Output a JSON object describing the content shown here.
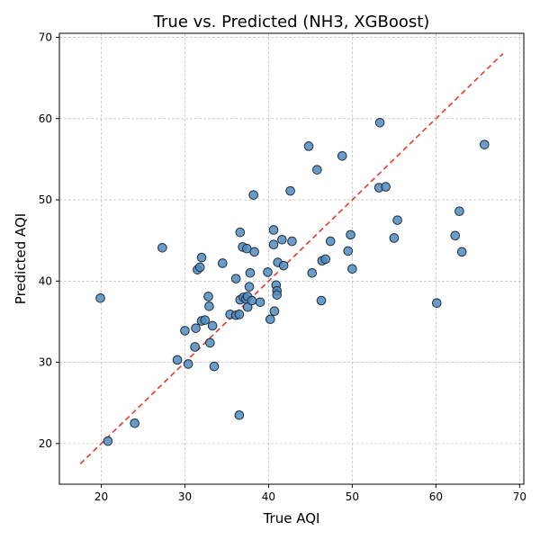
{
  "chart_data": {
    "type": "scatter",
    "title": "True vs. Predicted (NH3, XGBoost)",
    "xlabel": "True AQI",
    "ylabel": "Predicted AQI",
    "xlim": [
      15,
      70.5
    ],
    "ylim": [
      15,
      70.5
    ],
    "xticks": [
      20,
      30,
      40,
      50,
      60,
      70
    ],
    "yticks": [
      20,
      30,
      40,
      50,
      60,
      70
    ],
    "grid": true,
    "reference_line": {
      "x": [
        17.5,
        68
      ],
      "y": [
        17.5,
        68
      ],
      "style": "dashed",
      "color": "#e8382c"
    },
    "point_color": "#4f8bbd",
    "point_edge_color": "#1f2f3f",
    "series": [
      {
        "points": [
          [
            20.8,
            20.3
          ],
          [
            19.9,
            37.9
          ],
          [
            24.0,
            22.5
          ],
          [
            27.3,
            44.1
          ],
          [
            29.1,
            30.3
          ],
          [
            30.0,
            33.9
          ],
          [
            30.4,
            29.8
          ],
          [
            31.2,
            31.9
          ],
          [
            31.3,
            34.2
          ],
          [
            31.5,
            41.4
          ],
          [
            31.8,
            41.7
          ],
          [
            32.0,
            42.9
          ],
          [
            32.0,
            35.1
          ],
          [
            32.4,
            35.2
          ],
          [
            32.8,
            38.1
          ],
          [
            32.9,
            36.9
          ],
          [
            33.0,
            32.4
          ],
          [
            33.3,
            34.5
          ],
          [
            33.5,
            29.5
          ],
          [
            34.5,
            42.2
          ],
          [
            35.4,
            35.9
          ],
          [
            36.1,
            40.3
          ],
          [
            36.1,
            35.8
          ],
          [
            36.5,
            35.9
          ],
          [
            36.5,
            23.5
          ],
          [
            36.6,
            46.0
          ],
          [
            36.6,
            37.7
          ],
          [
            36.9,
            44.2
          ],
          [
            37.0,
            38.0
          ],
          [
            37.3,
            37.8
          ],
          [
            37.4,
            44.0
          ],
          [
            37.5,
            38.1
          ],
          [
            37.5,
            36.8
          ],
          [
            37.7,
            39.3
          ],
          [
            37.8,
            41.0
          ],
          [
            38.0,
            37.6
          ],
          [
            38.2,
            50.6
          ],
          [
            38.3,
            43.6
          ],
          [
            39.0,
            37.4
          ],
          [
            39.9,
            41.1
          ],
          [
            40.2,
            35.3
          ],
          [
            40.6,
            46.3
          ],
          [
            40.6,
            44.5
          ],
          [
            40.7,
            36.3
          ],
          [
            40.9,
            39.5
          ],
          [
            41.0,
            38.8
          ],
          [
            41.0,
            38.3
          ],
          [
            41.1,
            42.3
          ],
          [
            41.6,
            45.1
          ],
          [
            41.8,
            41.9
          ],
          [
            42.6,
            51.1
          ],
          [
            42.8,
            44.9
          ],
          [
            44.8,
            56.6
          ],
          [
            45.2,
            41.0
          ],
          [
            45.8,
            53.7
          ],
          [
            46.3,
            37.6
          ],
          [
            46.4,
            42.5
          ],
          [
            46.8,
            42.7
          ],
          [
            47.4,
            44.9
          ],
          [
            48.8,
            55.4
          ],
          [
            49.5,
            43.7
          ],
          [
            49.8,
            45.7
          ],
          [
            50.0,
            41.5
          ],
          [
            53.2,
            51.5
          ],
          [
            53.3,
            59.5
          ],
          [
            54.0,
            51.6
          ],
          [
            55.0,
            45.3
          ],
          [
            55.4,
            47.5
          ],
          [
            60.1,
            37.3
          ],
          [
            62.3,
            45.6
          ],
          [
            62.8,
            48.6
          ],
          [
            63.1,
            43.6
          ],
          [
            65.8,
            56.8
          ]
        ]
      }
    ]
  }
}
